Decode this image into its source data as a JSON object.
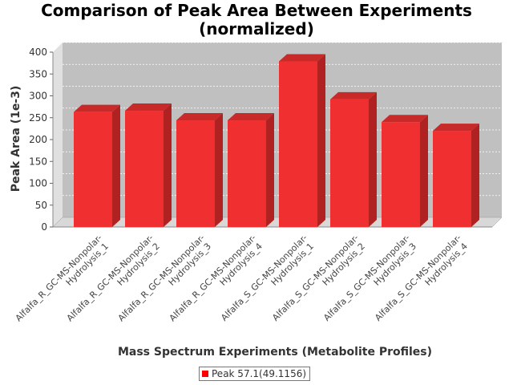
{
  "chart_data": {
    "type": "bar",
    "title": "Comparison of Peak Area Between Experiments (normalized)",
    "title_lines": [
      "Comparison of Peak Area Between Experiments",
      "(normalized)"
    ],
    "xlabel": "Mass Spectrum Experiments (Metabolite Profiles)",
    "ylabel": "Peak Area (1e-3)",
    "ylim": [
      0,
      400
    ],
    "yticks": [
      0,
      50,
      100,
      150,
      200,
      250,
      300,
      350,
      400
    ],
    "grid": true,
    "legend_position": "bottom",
    "categories": [
      "Alfalfa_R_GC-MS-Nonpolar-Hydrolysis_1",
      "Alfalfa_R_GC-MS-Nonpolar-Hydrolysis_2",
      "Alfalfa_R_GC-MS-Nonpolar-Hydrolysis_3",
      "Alfalfa_R_GC-MS-Nonpolar-Hydrolysis_4",
      "Alfalfa_S_GC-MS-Nonpolar-Hydrolysis_1",
      "Alfalfa_S_GC-MS-Nonpolar-Hydrolysis_2",
      "Alfalfa_S_GC-MS-Nonpolar-Hydrolysis_3",
      "Alfalfa_S_GC-MS-Nonpolar-Hydrolysis_4"
    ],
    "category_lines": [
      [
        "Alfalfa_R_GC-MS-Nonpolar-",
        "Hydrolysis_1"
      ],
      [
        "Alfalfa_R_GC-MS-Nonpolar-",
        "Hydrolysis_2"
      ],
      [
        "Alfalfa_R_GC-MS-Nonpolar-",
        "Hydrolysis_3"
      ],
      [
        "Alfalfa_R_GC-MS-Nonpolar-",
        "Hydrolysis_4"
      ],
      [
        "Alfalfa_S_GC-MS-Nonpolar-",
        "Hydrolysis_1"
      ],
      [
        "Alfalfa_S_GC-MS-Nonpolar-",
        "Hydrolysis_2"
      ],
      [
        "Alfalfa_S_GC-MS-Nonpolar-",
        "Hydrolysis_3"
      ],
      [
        "Alfalfa_S_GC-MS-Nonpolar-",
        "Hydrolysis_4"
      ]
    ],
    "series": [
      {
        "name": "Peak 57.1(49.1156)",
        "color": "#ff0000",
        "values": [
          263,
          266,
          244,
          244,
          379,
          292,
          240,
          220
        ]
      }
    ]
  },
  "colors": {
    "bar": "#f03030",
    "bar_top": "#c82a2a",
    "bar_side": "#b02222",
    "plot_bg": "#c0c0c0",
    "wall_left": "#e0e0e0",
    "floor": "#d8d8d8"
  }
}
